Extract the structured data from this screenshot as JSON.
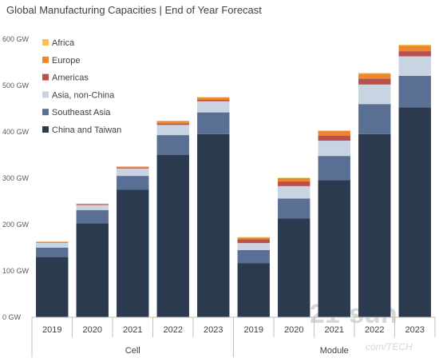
{
  "title": "Global Manufacturing Capacities | End of Year Forecast",
  "watermark": {
    "text": "21-sun",
    "subtext": "com/TECH"
  },
  "chart_data": {
    "type": "bar",
    "stacked": true,
    "title": "Global Manufacturing Capacities | End of Year Forecast",
    "ylim": [
      0,
      600
    ],
    "yticks": [
      {
        "value": 0,
        "label": "0 GW"
      },
      {
        "value": 100,
        "label": "100 GW"
      },
      {
        "value": 200,
        "label": "200 GW"
      },
      {
        "value": 300,
        "label": "300 GW"
      },
      {
        "value": 400,
        "label": "400 GW"
      },
      {
        "value": 500,
        "label": "500 GW"
      },
      {
        "value": 600,
        "label": "600 GW"
      }
    ],
    "grid": false,
    "legend_position": "top-left",
    "groups": [
      {
        "name": "Cell",
        "categories": [
          "2019",
          "2020",
          "2021",
          "2022",
          "2023"
        ]
      },
      {
        "name": "Module",
        "categories": [
          "2019",
          "2020",
          "2021",
          "2022",
          "2023"
        ]
      }
    ],
    "series": [
      {
        "name": "China and Taiwan",
        "color": "#2c3a4f",
        "values": [
          130,
          203,
          275,
          350,
          395,
          117,
          213,
          296,
          395,
          453
        ]
      },
      {
        "name": "Southeast Asia",
        "color": "#596f93",
        "values": [
          20,
          28,
          30,
          43,
          47,
          28,
          43,
          52,
          65,
          68
        ]
      },
      {
        "name": "Asia, non-China",
        "color": "#c9d4e3",
        "values": [
          11,
          11,
          16,
          22,
          24,
          15,
          27,
          33,
          42,
          42
        ]
      },
      {
        "name": "Americas",
        "color": "#b9504a",
        "values": [
          1,
          1,
          2,
          3,
          3,
          8,
          10,
          11,
          13,
          11
        ]
      },
      {
        "name": "Europe",
        "color": "#ed872d",
        "values": [
          1,
          2,
          2,
          5,
          5,
          4,
          7,
          10,
          10,
          12
        ]
      },
      {
        "name": "Africa",
        "color": "#f5c24c",
        "values": [
          0,
          0,
          0,
          1,
          1,
          1,
          1,
          1,
          2,
          2
        ]
      }
    ]
  }
}
